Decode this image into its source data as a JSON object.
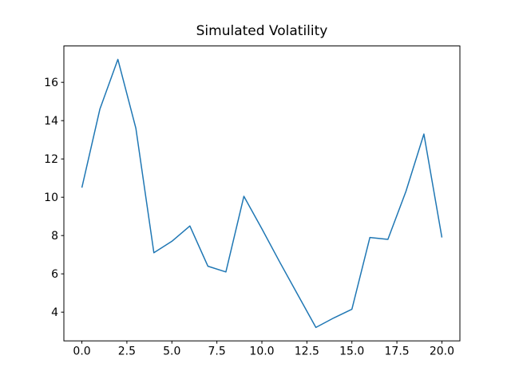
{
  "figure": {
    "background": "#ffffff"
  },
  "chart_data": {
    "type": "line",
    "title": "Simulated Volatility",
    "xlabel": "",
    "ylabel": "",
    "x": [
      0,
      1,
      2,
      3,
      4,
      5,
      6,
      7,
      8,
      9,
      10,
      11,
      12,
      13,
      14,
      15,
      16,
      17,
      18,
      19,
      20
    ],
    "values": [
      10.5,
      14.6,
      17.2,
      13.6,
      7.1,
      7.7,
      8.5,
      6.4,
      6.1,
      10.05,
      8.35,
      6.6,
      4.9,
      3.2,
      3.7,
      4.15,
      7.9,
      7.8,
      10.3,
      13.3,
      7.9
    ],
    "series_name": "volatility",
    "line_color": "#1f77b4",
    "line_width": 1.5,
    "xlim": [
      -1.0,
      21.0
    ],
    "ylim": [
      2.5,
      17.9
    ],
    "xticks": [
      0.0,
      2.5,
      5.0,
      7.5,
      10.0,
      12.5,
      15.0,
      17.5,
      20.0
    ],
    "xtick_labels": [
      "0.0",
      "2.5",
      "5.0",
      "7.5",
      "10.0",
      "12.5",
      "15.0",
      "17.5",
      "20.0"
    ],
    "yticks": [
      4,
      6,
      8,
      10,
      12,
      14,
      16
    ],
    "ytick_labels": [
      "4",
      "6",
      "8",
      "10",
      "12",
      "14",
      "16"
    ],
    "grid": false,
    "legend": null,
    "spine_color": "#000000",
    "tick_color": "#000000"
  }
}
